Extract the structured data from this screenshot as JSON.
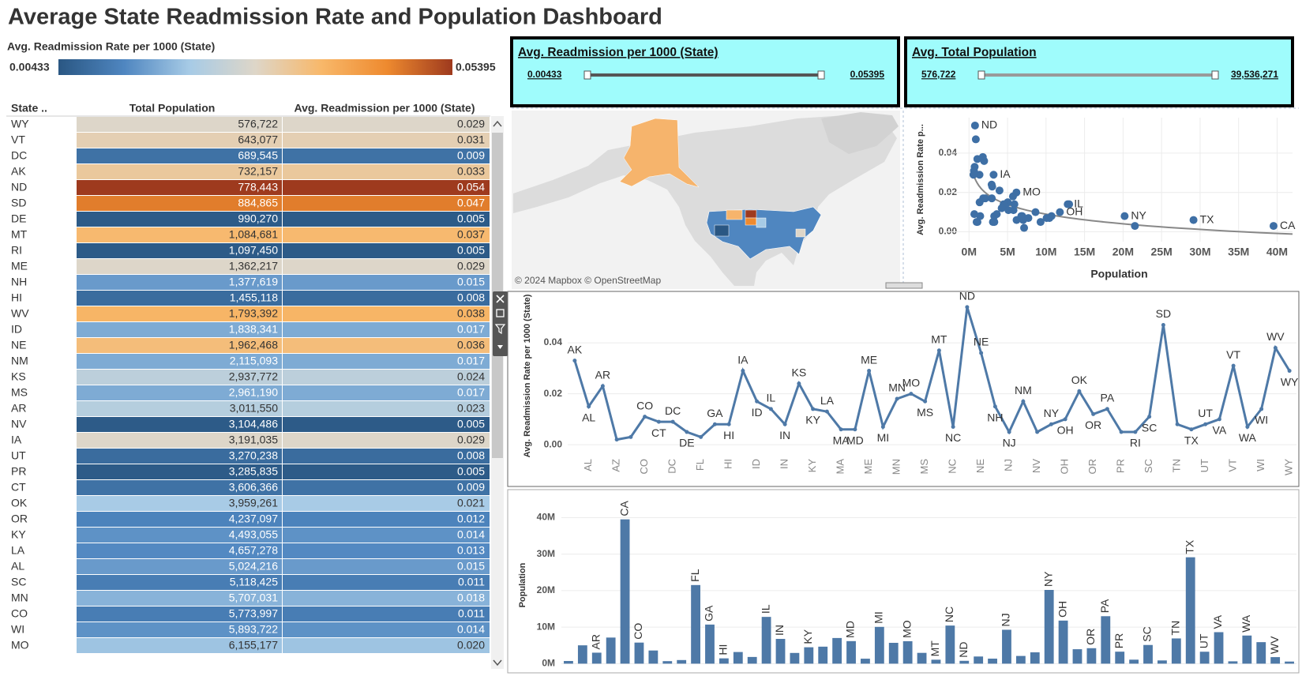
{
  "header": {
    "title": "Average State Readmission Rate and Population Dashboard"
  },
  "legend": {
    "title": "Avg. Readmission Rate per 1000 (State)",
    "min": 0.00433,
    "max": 0.05395,
    "colors": [
      "#2a5783",
      "#4f86c0",
      "#a7cbe6",
      "#ded6c8",
      "#f8b86a",
      "#ee8a2f",
      "#9e3a1e"
    ]
  },
  "table": {
    "columns": [
      "State ..",
      "Total Population",
      "Avg. Readmission per 1000 (State)"
    ],
    "rows": [
      [
        "WY",
        "576,722",
        "0.029"
      ],
      [
        "VT",
        "643,077",
        "0.031"
      ],
      [
        "DC",
        "689,545",
        "0.009"
      ],
      [
        "AK",
        "732,157",
        "0.033"
      ],
      [
        "ND",
        "778,443",
        "0.054"
      ],
      [
        "SD",
        "884,865",
        "0.047"
      ],
      [
        "DE",
        "990,270",
        "0.005"
      ],
      [
        "MT",
        "1,084,681",
        "0.037"
      ],
      [
        "RI",
        "1,097,450",
        "0.005"
      ],
      [
        "ME",
        "1,362,217",
        "0.029"
      ],
      [
        "NH",
        "1,377,619",
        "0.015"
      ],
      [
        "HI",
        "1,455,118",
        "0.008"
      ],
      [
        "WV",
        "1,793,392",
        "0.038"
      ],
      [
        "ID",
        "1,838,341",
        "0.017"
      ],
      [
        "NE",
        "1,962,468",
        "0.036"
      ],
      [
        "NM",
        "2,115,093",
        "0.017"
      ],
      [
        "KS",
        "2,937,772",
        "0.024"
      ],
      [
        "MS",
        "2,961,190",
        "0.017"
      ],
      [
        "AR",
        "3,011,550",
        "0.023"
      ],
      [
        "NV",
        "3,104,486",
        "0.005"
      ],
      [
        "IA",
        "3,191,035",
        "0.029"
      ],
      [
        "UT",
        "3,270,238",
        "0.008"
      ],
      [
        "PR",
        "3,285,835",
        "0.005"
      ],
      [
        "CT",
        "3,606,366",
        "0.009"
      ],
      [
        "OK",
        "3,959,261",
        "0.021"
      ],
      [
        "OR",
        "4,237,097",
        "0.012"
      ],
      [
        "KY",
        "4,493,055",
        "0.014"
      ],
      [
        "LA",
        "4,657,278",
        "0.013"
      ],
      [
        "AL",
        "5,024,216",
        "0.015"
      ],
      [
        "SC",
        "5,118,425",
        "0.011"
      ],
      [
        "MN",
        "5,707,031",
        "0.018"
      ],
      [
        "CO",
        "5,773,997",
        "0.011"
      ],
      [
        "WI",
        "5,893,722",
        "0.014"
      ],
      [
        "MO",
        "6,155,177",
        "0.020"
      ]
    ]
  },
  "filters": [
    {
      "title": "Avg. Readmission per 1000 (State)",
      "min": "0.00433",
      "max": "0.05395"
    },
    {
      "title": "Avg. Total Population",
      "min": "576,722",
      "max": "39,536,271"
    }
  ],
  "map": {
    "attribution": "© 2024 Mapbox © OpenStreetMap"
  },
  "chart_data": [
    {
      "type": "scatter",
      "x_label": "Population",
      "y_label": "Avg. Readmission Rate p...",
      "color": "#3e6fa5",
      "grid": true,
      "trendline": true,
      "x": [
        732157,
        5024216,
        3011550,
        7151502,
        39536271,
        5773997,
        3606366,
        689545,
        990270,
        21538187,
        10711908,
        1455118,
        3191035,
        1838341,
        12812508,
        6785528,
        2937772,
        4493055,
        4657278,
        7029917,
        6177224,
        1362217,
        10077331,
        5707031,
        6155177,
        2961190,
        1084681,
        10439388,
        778443,
        1962468,
        1377619,
        9288994,
        2115093,
        3104486,
        20201249,
        11799448,
        3959261,
        4237097,
        13002700,
        3285835,
        1097450,
        5118425,
        884865,
        6910840,
        29145505,
        3270238,
        8631393,
        643077,
        7705281,
        5893722,
        1793392,
        576722
      ],
      "values": [
        0.033,
        0.015,
        0.023,
        0.002,
        0.003,
        0.011,
        0.009,
        0.009,
        0.005,
        0.003,
        0.008,
        0.008,
        0.029,
        0.017,
        0.014,
        0.008,
        0.024,
        0.014,
        0.013,
        0.006,
        0.006,
        0.029,
        0.007,
        0.018,
        0.02,
        0.017,
        0.037,
        0.007,
        0.054,
        0.036,
        0.015,
        0.005,
        0.017,
        0.005,
        0.008,
        0.01,
        0.021,
        0.012,
        0.014,
        0.005,
        0.005,
        0.011,
        0.047,
        0.008,
        0.006,
        0.008,
        0.01,
        0.031,
        0.007,
        0.014,
        0.038,
        0.029
      ],
      "point_labels": [
        null,
        null,
        null,
        null,
        "CA",
        null,
        null,
        null,
        null,
        null,
        null,
        null,
        "IA",
        null,
        "IL",
        null,
        null,
        null,
        null,
        null,
        null,
        null,
        null,
        null,
        "MO",
        null,
        null,
        null,
        "ND",
        null,
        null,
        null,
        null,
        null,
        "NY",
        "OH",
        null,
        null,
        null,
        null,
        null,
        null,
        null,
        null,
        "TX",
        null,
        null,
        null,
        null,
        null,
        null,
        null
      ],
      "xlim": [
        -3000000,
        42000000
      ],
      "xticks": [
        {
          "value": 0,
          "label": "0M"
        },
        {
          "value": 5000000,
          "label": "5M"
        },
        {
          "value": 10000000,
          "label": "10M"
        },
        {
          "value": 15000000,
          "label": "15M"
        },
        {
          "value": 20000000,
          "label": "20M"
        },
        {
          "value": 25000000,
          "label": "25M"
        },
        {
          "value": 30000000,
          "label": "30M"
        },
        {
          "value": 35000000,
          "label": "35M"
        },
        {
          "value": 40000000,
          "label": "40M"
        }
      ],
      "ylim": [
        -0.005,
        0.058
      ],
      "yticks": [
        {
          "value": 0,
          "label": "0.00"
        },
        {
          "value": 0.02,
          "label": "0.02"
        },
        {
          "value": 0.04,
          "label": "0.04"
        }
      ]
    },
    {
      "type": "line",
      "y_label": "Avg. Readmission Rate per 1000 (State)",
      "color": "#4e79a7",
      "grid": true,
      "categories": [
        null,
        "AL",
        null,
        "AZ",
        null,
        "CO",
        null,
        "DC",
        null,
        "FL",
        null,
        "HI",
        null,
        "ID",
        null,
        "IN",
        null,
        "KY",
        null,
        "MA",
        null,
        "ME",
        null,
        "MN",
        null,
        "MS",
        null,
        "NC",
        null,
        "NE",
        null,
        "NJ",
        null,
        "NV",
        null,
        "OH",
        null,
        "OR",
        null,
        "PR",
        null,
        "SC",
        null,
        "TN",
        null,
        "UT",
        null,
        "VT",
        null,
        "WI",
        null,
        "WY"
      ],
      "values": [
        0.033,
        0.015,
        0.023,
        0.002,
        0.003,
        0.011,
        0.009,
        0.009,
        0.005,
        0.003,
        0.008,
        0.008,
        0.029,
        0.017,
        0.014,
        0.008,
        0.024,
        0.014,
        0.013,
        0.006,
        0.006,
        0.029,
        0.007,
        0.018,
        0.02,
        0.017,
        0.037,
        0.007,
        0.054,
        0.036,
        0.015,
        0.005,
        0.017,
        0.005,
        0.008,
        0.01,
        0.021,
        0.012,
        0.014,
        0.005,
        0.005,
        0.011,
        0.047,
        0.008,
        0.006,
        0.008,
        0.01,
        0.031,
        0.007,
        0.014,
        0.038,
        0.029
      ],
      "point_labels": [
        "AK",
        "AL",
        "AR",
        null,
        null,
        "CO",
        "CT",
        "DC",
        "DE",
        null,
        "GA",
        "HI",
        "IA",
        "ID",
        "IL",
        "IN",
        "KS",
        "KY",
        "LA",
        "MA",
        "MD",
        "ME",
        "MI",
        "MN",
        "MO",
        "MS",
        "MT",
        "NC",
        "ND",
        "NE",
        "NH",
        "NJ",
        "NM",
        null,
        "NY",
        "OH",
        "OK",
        "OR",
        "PA",
        null,
        "RI",
        "SC",
        "SD",
        null,
        "TX",
        "UT",
        "VA",
        "VT",
        "WA",
        "WI",
        "WV",
        "WY"
      ],
      "ylim": [
        -0.004,
        0.058
      ],
      "yticks": [
        {
          "value": 0,
          "label": "0.00"
        },
        {
          "value": 0.02,
          "label": "0.02"
        },
        {
          "value": 0.04,
          "label": "0.04"
        }
      ]
    },
    {
      "type": "bar",
      "y_label": "Population",
      "color": "#4e79a7",
      "grid": true,
      "categories": [
        null,
        null,
        "AR",
        null,
        "CA",
        "CO",
        null,
        null,
        null,
        "FL",
        "GA",
        "HI",
        null,
        null,
        "IL",
        "IN",
        null,
        "KY",
        null,
        null,
        "MD",
        null,
        "MI",
        null,
        "MO",
        null,
        "MT",
        "NC",
        "ND",
        null,
        null,
        "NJ",
        null,
        null,
        "NY",
        "OH",
        null,
        "OR",
        "PA",
        "PR",
        null,
        "SC",
        null,
        "TN",
        "TX",
        "UT",
        "VA",
        null,
        "WA",
        null,
        "WV",
        null
      ],
      "values": [
        732157,
        5024216,
        3011550,
        7151502,
        39536271,
        5773997,
        3606366,
        689545,
        990270,
        21538187,
        10711908,
        1455118,
        3191035,
        1838341,
        12812508,
        6785528,
        2937772,
        4493055,
        4657278,
        7029917,
        6177224,
        1362217,
        10077331,
        5707031,
        6155177,
        2961190,
        1084681,
        10439388,
        778443,
        1962468,
        1377619,
        9288994,
        2115093,
        3104486,
        20201249,
        11799448,
        3959261,
        4237097,
        13002700,
        3285835,
        1097450,
        5118425,
        884865,
        6910840,
        29145505,
        3270238,
        8631393,
        643077,
        7705281,
        5893722,
        1793392,
        576722
      ],
      "ylim": [
        -1000000,
        44000000
      ],
      "yticks": [
        {
          "value": 0,
          "label": "0M"
        },
        {
          "value": 10000000,
          "label": "10M"
        },
        {
          "value": 20000000,
          "label": "20M"
        },
        {
          "value": 30000000,
          "label": "30M"
        },
        {
          "value": 40000000,
          "label": "40M"
        }
      ]
    }
  ]
}
